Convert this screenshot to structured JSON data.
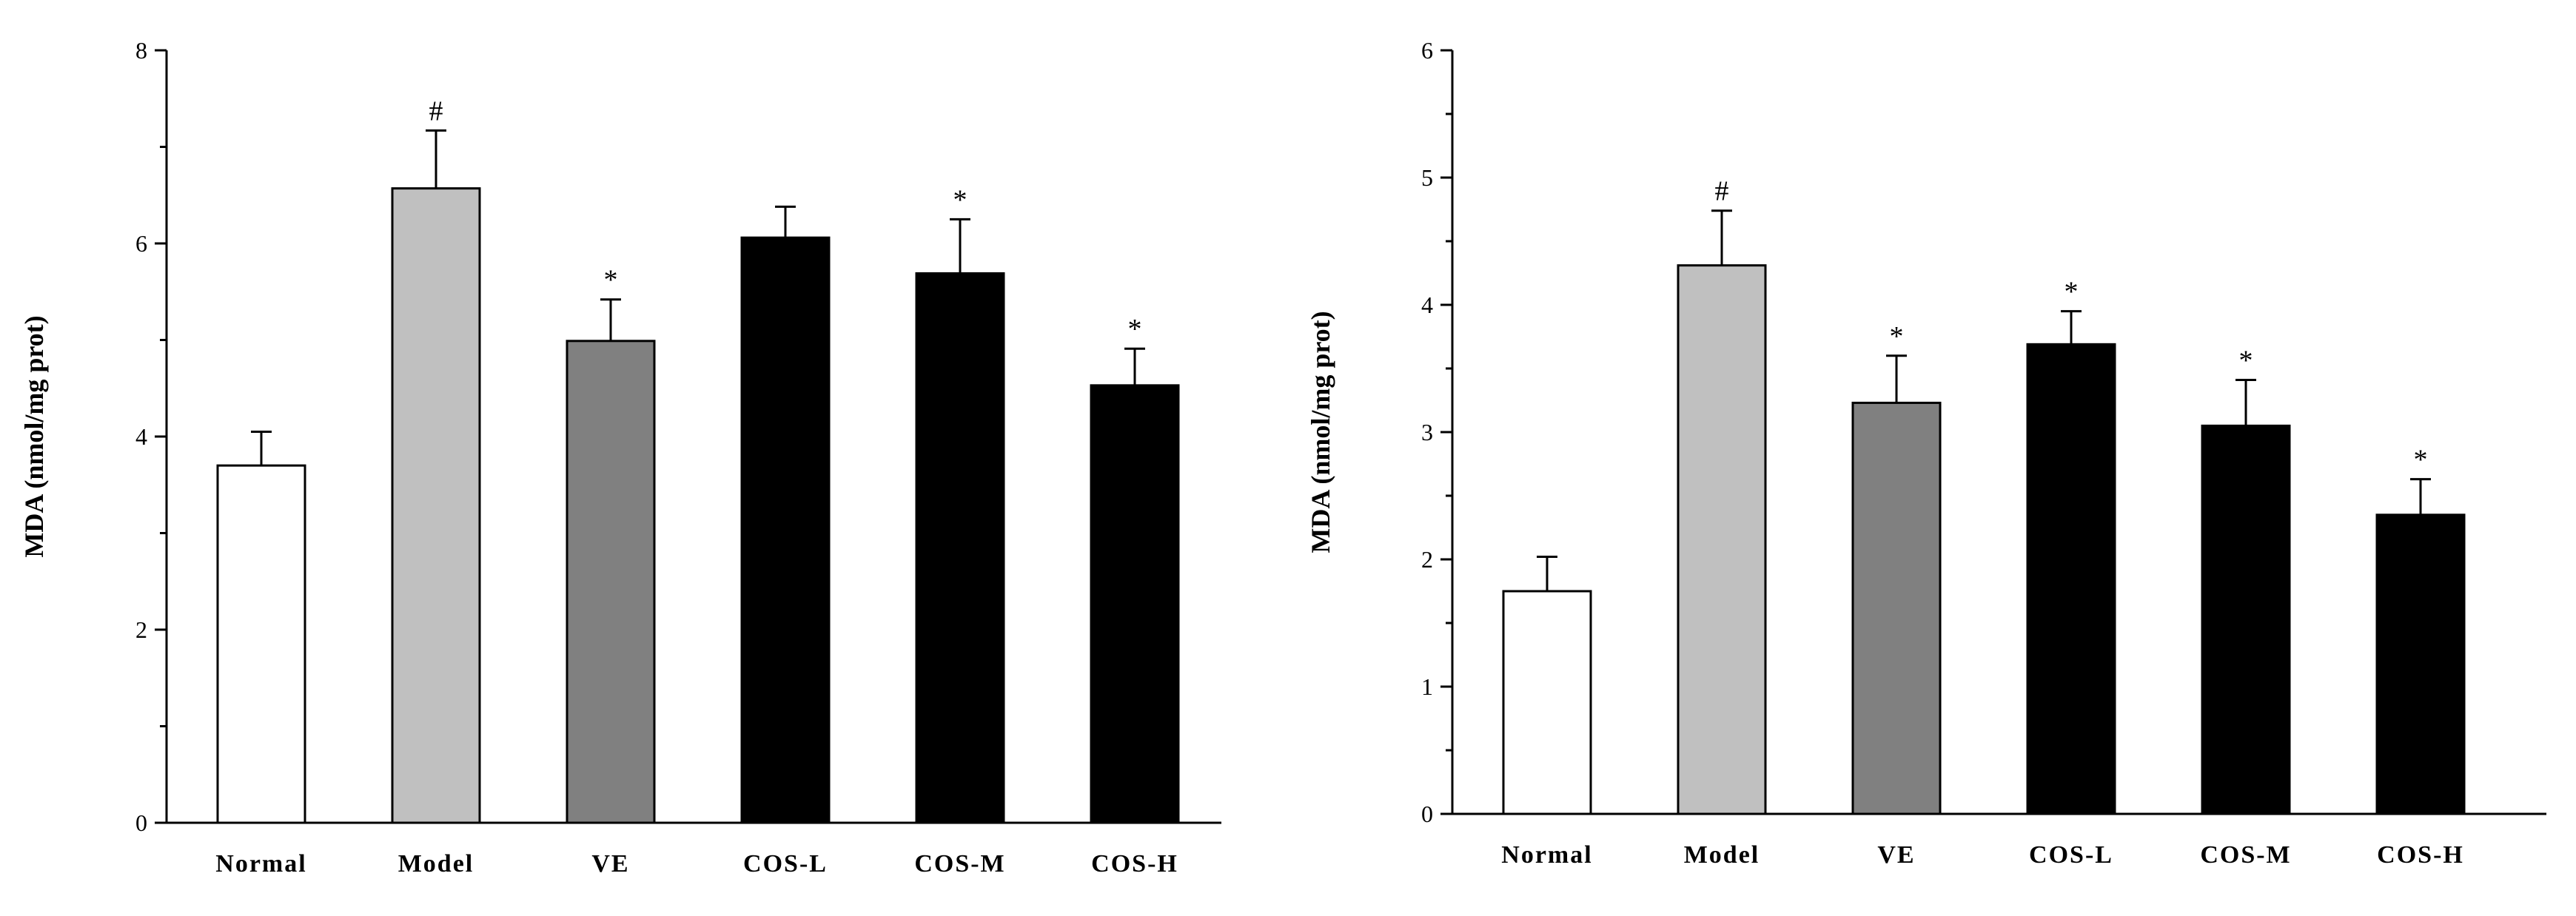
{
  "chart_data": [
    {
      "type": "bar",
      "ylabel": "MDA (nmol/mg prot)",
      "categories": [
        "Normal",
        "Model",
        "VE",
        "COS-L",
        "COS-M",
        "COS-H"
      ],
      "values": [
        3.7,
        6.57,
        4.99,
        6.06,
        5.69,
        4.53
      ],
      "errors": [
        0.35,
        0.6,
        0.43,
        0.32,
        0.56,
        0.38
      ],
      "annotations": [
        "",
        "#",
        "*",
        "",
        "*",
        "*"
      ],
      "bar_colors": [
        "#ffffff",
        "#c0c0c0",
        "#808080",
        "#000000",
        "#000000",
        "#000000"
      ],
      "ylim": [
        0,
        8
      ],
      "yticks": [
        "0",
        "2",
        "4",
        "6",
        "8"
      ],
      "grid": false
    },
    {
      "type": "bar",
      "ylabel": "MDA (nmol/mg prot)",
      "categories": [
        "Normal",
        "Model",
        "VE",
        "COS-L",
        "COS-M",
        "COS-H"
      ],
      "values": [
        1.75,
        4.31,
        3.23,
        3.69,
        3.05,
        2.35
      ],
      "errors": [
        0.27,
        0.43,
        0.37,
        0.26,
        0.36,
        0.28
      ],
      "annotations": [
        "",
        "#",
        "*",
        "*",
        "*",
        "*"
      ],
      "bar_colors": [
        "#ffffff",
        "#c0c0c0",
        "#808080",
        "#000000",
        "#000000",
        "#000000"
      ],
      "ylim": [
        0,
        6
      ],
      "yticks": [
        "0",
        "1",
        "2",
        "3",
        "4",
        "5",
        "6"
      ],
      "grid": false
    }
  ]
}
